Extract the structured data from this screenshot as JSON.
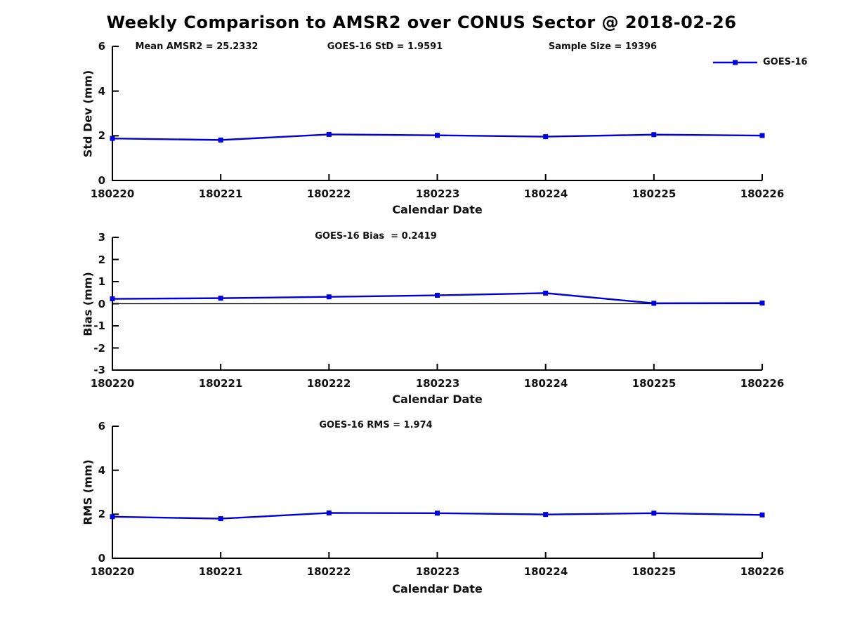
{
  "figure": {
    "title": "Weekly Comparison to AMSR2 over CONUS Sector @ 2018-02-26",
    "legend": {
      "label": "GOES-16",
      "position": "top-right"
    }
  },
  "colors": {
    "series_line": "#0000dd",
    "axis": "#000000",
    "text": "#111111",
    "background": "#ffffff"
  },
  "chart_data": [
    {
      "type": "line",
      "panel": "std-dev",
      "annotations": [
        "Mean AMSR2 = 25.2332",
        "GOES-16 StD = 1.9591",
        "Sample Size = 19396"
      ],
      "categories": [
        "180220",
        "180221",
        "180222",
        "180223",
        "180224",
        "180225",
        "180226"
      ],
      "series": [
        {
          "name": "GOES-16",
          "values": [
            1.88,
            1.81,
            2.06,
            2.02,
            1.96,
            2.05,
            2.01
          ]
        }
      ],
      "xlabel": "Calendar Date",
      "ylabel": "Std Dev (mm)",
      "ylim": [
        0,
        6
      ],
      "yticks": [
        0,
        2,
        4,
        6
      ],
      "zero_line": false,
      "grid": false,
      "marker": "square"
    },
    {
      "type": "line",
      "panel": "bias",
      "annotations": [
        "GOES-16 Bias  = 0.2419"
      ],
      "categories": [
        "180220",
        "180221",
        "180222",
        "180223",
        "180224",
        "180225",
        "180226"
      ],
      "series": [
        {
          "name": "GOES-16",
          "values": [
            0.22,
            0.25,
            0.31,
            0.38,
            0.48,
            0.02,
            0.03
          ]
        }
      ],
      "xlabel": "Calendar Date",
      "ylabel": "Bias (mm)",
      "ylim": [
        -3,
        3
      ],
      "yticks": [
        -3,
        -2,
        -1,
        0,
        1,
        2,
        3
      ],
      "zero_line": true,
      "grid": false,
      "marker": "square"
    },
    {
      "type": "line",
      "panel": "rms",
      "annotations": [
        "GOES-16 RMS = 1.974"
      ],
      "categories": [
        "180220",
        "180221",
        "180222",
        "180223",
        "180224",
        "180225",
        "180226"
      ],
      "series": [
        {
          "name": "GOES-16",
          "values": [
            1.89,
            1.8,
            2.06,
            2.05,
            1.99,
            2.05,
            1.97
          ]
        }
      ],
      "xlabel": "Calendar Date",
      "ylabel": "RMS (mm)",
      "ylim": [
        0,
        6
      ],
      "yticks": [
        0,
        2,
        4,
        6
      ],
      "zero_line": false,
      "grid": false,
      "marker": "square"
    }
  ]
}
